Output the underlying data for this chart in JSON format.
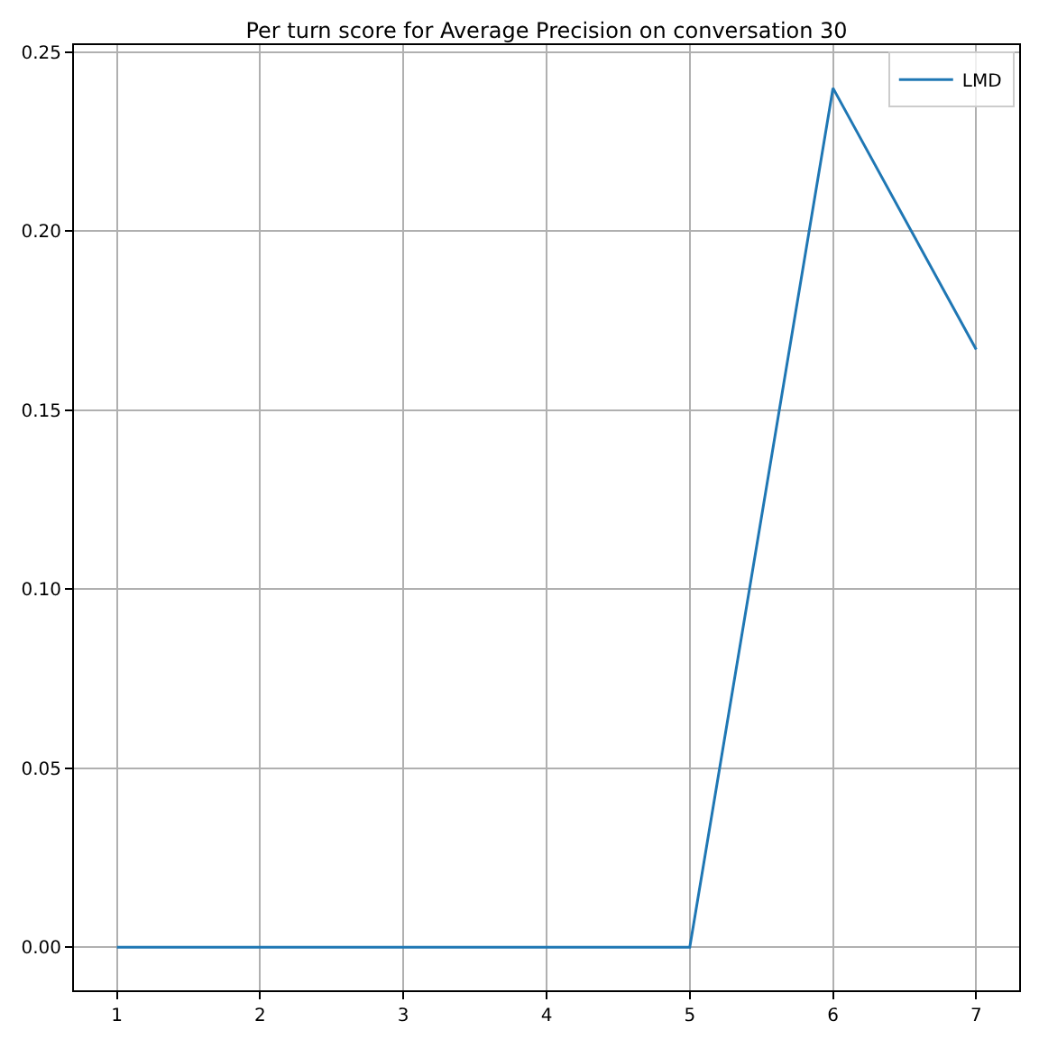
{
  "chart_data": {
    "type": "line",
    "title": "Per turn score for Average Precision on conversation 30",
    "x": [
      1,
      2,
      3,
      4,
      5,
      6,
      7
    ],
    "series": [
      {
        "name": "LMD",
        "color": "#1f77b4",
        "values": [
          0,
          0,
          0,
          0,
          0,
          0.24,
          0.167
        ]
      }
    ],
    "xlim": [
      0.7,
      7.3
    ],
    "xticks": [
      1,
      2,
      3,
      4,
      5,
      6,
      7
    ],
    "ylim": [
      -0.012,
      0.252
    ],
    "yticks": [
      {
        "value": 0,
        "label": "0.00"
      },
      0.05,
      {
        "value": 0.1,
        "label": "0.10"
      },
      0.15,
      {
        "value": 0.2,
        "label": "0.20"
      },
      0.25
    ],
    "grid": true,
    "legend": "top right",
    "marker": "none",
    "line_style": "solid"
  }
}
